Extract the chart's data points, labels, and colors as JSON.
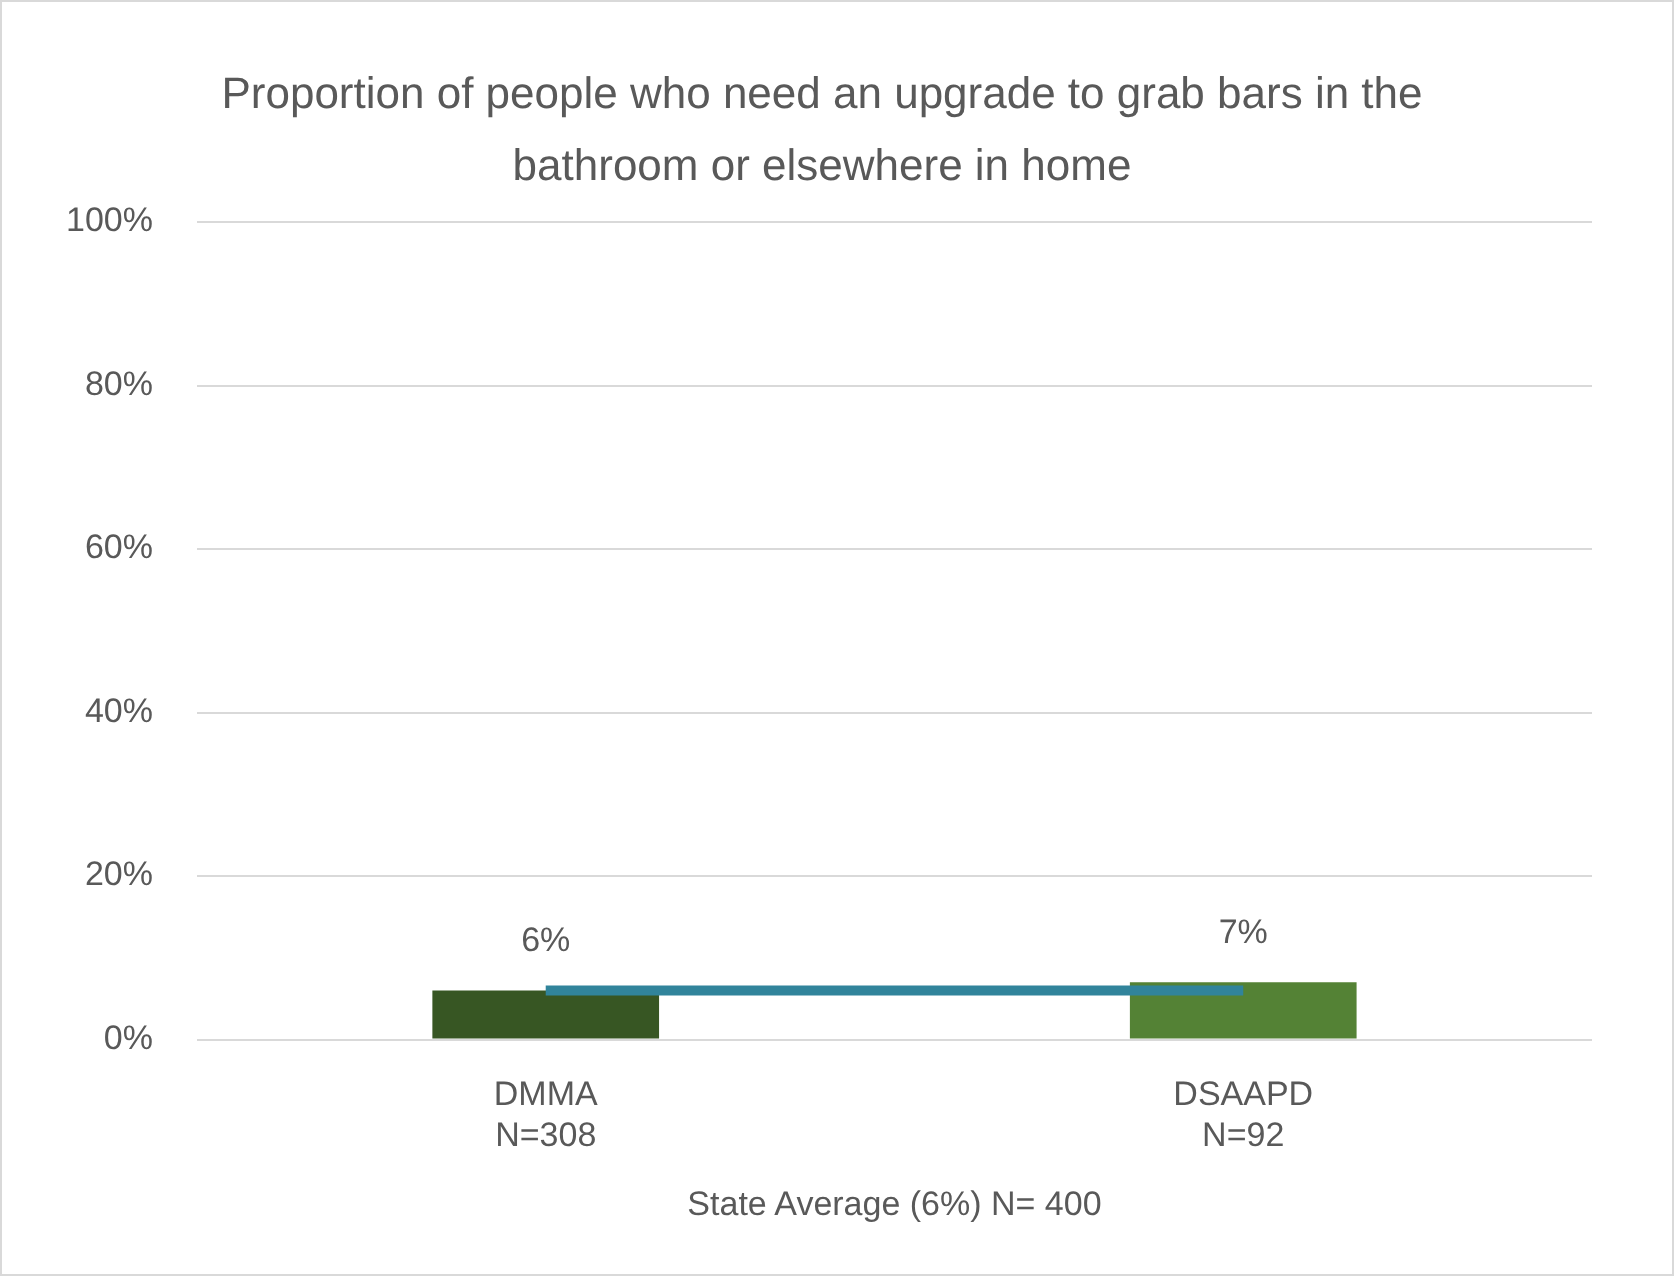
{
  "chart_data": {
    "type": "bar",
    "title": "Proportion of people who need an upgrade to grab bars in the bathroom or elsewhere in home",
    "xlabel": "State Average (6%) N= 400",
    "categories": [
      "DMMA\nN=308",
      "DSAAPD\nN=92"
    ],
    "series": [
      {
        "colors": [
          "#375623",
          "#548235"
        ],
        "values": [
          6,
          7
        ],
        "value_labels": [
          "6%",
          "7%"
        ]
      },
      {
        "type": "line",
        "color": "#31849b",
        "values": [
          6,
          6
        ]
      }
    ],
    "ylim": [
      0,
      100
    ],
    "yticks": [
      {
        "value": 0,
        "label": "0%"
      },
      {
        "value": 20,
        "label": "20%"
      },
      {
        "value": 40,
        "label": "40%"
      },
      {
        "value": 60,
        "label": "60%"
      },
      {
        "value": 80,
        "label": "80%"
      },
      {
        "value": 100,
        "label": "100%"
      }
    ],
    "grid": "y",
    "legend": false,
    "marker": "none"
  }
}
